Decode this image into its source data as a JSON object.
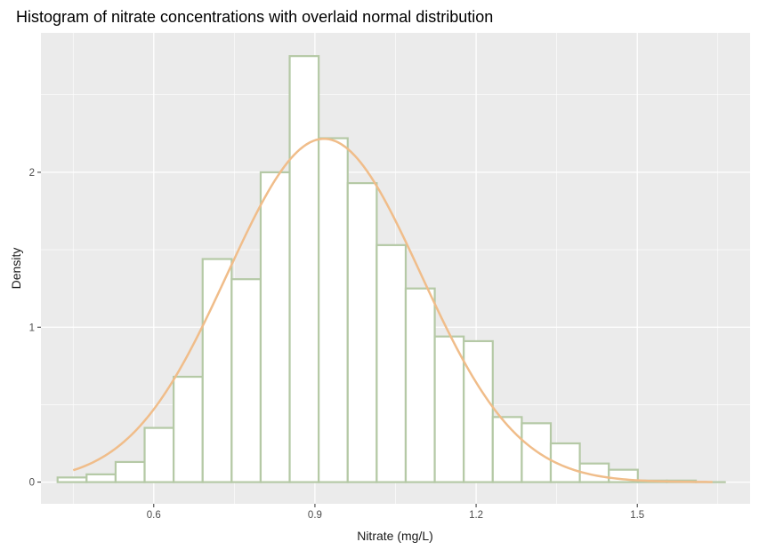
{
  "chart_data": {
    "type": "bar",
    "title": "Histogram of nitrate concentrations with overlaid normal distribution",
    "xlabel": "Nitrate (mg/L)",
    "ylabel": "Density",
    "xlim": [
      0.39,
      1.71
    ],
    "ylim": [
      -0.14,
      2.9
    ],
    "x_ticks": [
      0.6,
      0.9,
      1.2,
      1.5
    ],
    "x_tick_labels": [
      "0.6",
      "0.9",
      "1.2",
      "1.5"
    ],
    "y_ticks": [
      0,
      1,
      2
    ],
    "y_tick_labels": [
      "0",
      "1",
      "2"
    ],
    "bin_width": 0.054,
    "bins": [
      {
        "x0": 0.421,
        "x1": 0.475,
        "density": 0.03
      },
      {
        "x0": 0.475,
        "x1": 0.529,
        "density": 0.05
      },
      {
        "x0": 0.529,
        "x1": 0.583,
        "density": 0.13
      },
      {
        "x0": 0.583,
        "x1": 0.637,
        "density": 0.35
      },
      {
        "x0": 0.637,
        "x1": 0.691,
        "density": 0.68
      },
      {
        "x0": 0.691,
        "x1": 0.745,
        "density": 1.44
      },
      {
        "x0": 0.745,
        "x1": 0.799,
        "density": 1.31
      },
      {
        "x0": 0.799,
        "x1": 0.853,
        "density": 2.0
      },
      {
        "x0": 0.853,
        "x1": 0.907,
        "density": 2.75
      },
      {
        "x0": 0.907,
        "x1": 0.961,
        "density": 2.22
      },
      {
        "x0": 0.961,
        "x1": 1.015,
        "density": 1.93
      },
      {
        "x0": 1.015,
        "x1": 1.069,
        "density": 1.53
      },
      {
        "x0": 1.069,
        "x1": 1.123,
        "density": 1.25
      },
      {
        "x0": 1.123,
        "x1": 1.177,
        "density": 0.94
      },
      {
        "x0": 1.177,
        "x1": 1.231,
        "density": 0.91
      },
      {
        "x0": 1.231,
        "x1": 1.285,
        "density": 0.42
      },
      {
        "x0": 1.285,
        "x1": 1.339,
        "density": 0.38
      },
      {
        "x0": 1.339,
        "x1": 1.393,
        "density": 0.25
      },
      {
        "x0": 1.393,
        "x1": 1.447,
        "density": 0.12
      },
      {
        "x0": 1.447,
        "x1": 1.501,
        "density": 0.08
      },
      {
        "x0": 1.501,
        "x1": 1.555,
        "density": 0.01
      },
      {
        "x0": 1.555,
        "x1": 1.609,
        "density": 0.01
      },
      {
        "x0": 1.609,
        "x1": 1.663,
        "density": 0.0
      }
    ],
    "normal_curve": {
      "mean": 0.917,
      "sd": 0.18,
      "x_from": 0.45,
      "x_to": 1.64
    },
    "grid": true,
    "colors": {
      "panel_background": "#ebebeb",
      "grid_major": "#ffffff",
      "bar_fill": "#ffffff",
      "bar_outline": "#b5c9a6",
      "curve": "#f0bd8a",
      "tick_label": "#4d4d4d"
    }
  }
}
